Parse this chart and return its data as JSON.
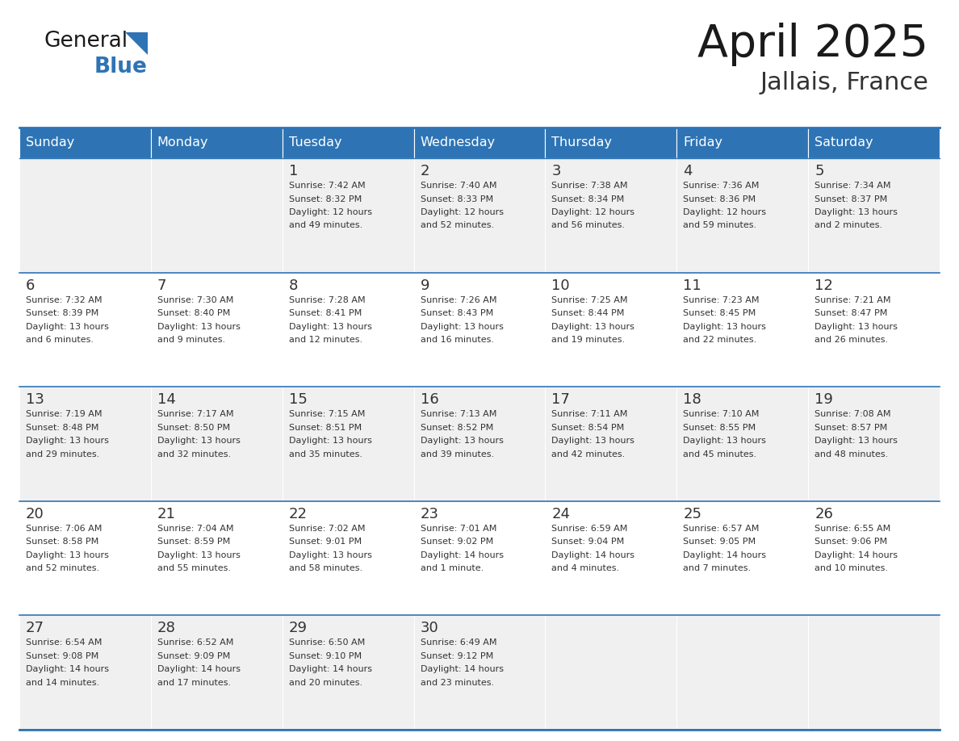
{
  "title": "April 2025",
  "subtitle": "Jallais, France",
  "header_bg_color": "#2E74B5",
  "header_text_color": "#FFFFFF",
  "day_names": [
    "Sunday",
    "Monday",
    "Tuesday",
    "Wednesday",
    "Thursday",
    "Friday",
    "Saturday"
  ],
  "row_colors": [
    "#F0F0F0",
    "#FFFFFF"
  ],
  "border_color": "#2E74B5",
  "text_color": "#333333",
  "logo_general_color": "#1a1a1a",
  "logo_blue_color": "#2E74B5",
  "logo_triangle_color": "#2E74B5",
  "calendar": [
    [
      {
        "day": "",
        "sunrise": "",
        "sunset": "",
        "daylight": ""
      },
      {
        "day": "",
        "sunrise": "",
        "sunset": "",
        "daylight": ""
      },
      {
        "day": "1",
        "sunrise": "Sunrise: 7:42 AM",
        "sunset": "Sunset: 8:32 PM",
        "daylight": "Daylight: 12 hours\nand 49 minutes."
      },
      {
        "day": "2",
        "sunrise": "Sunrise: 7:40 AM",
        "sunset": "Sunset: 8:33 PM",
        "daylight": "Daylight: 12 hours\nand 52 minutes."
      },
      {
        "day": "3",
        "sunrise": "Sunrise: 7:38 AM",
        "sunset": "Sunset: 8:34 PM",
        "daylight": "Daylight: 12 hours\nand 56 minutes."
      },
      {
        "day": "4",
        "sunrise": "Sunrise: 7:36 AM",
        "sunset": "Sunset: 8:36 PM",
        "daylight": "Daylight: 12 hours\nand 59 minutes."
      },
      {
        "day": "5",
        "sunrise": "Sunrise: 7:34 AM",
        "sunset": "Sunset: 8:37 PM",
        "daylight": "Daylight: 13 hours\nand 2 minutes."
      }
    ],
    [
      {
        "day": "6",
        "sunrise": "Sunrise: 7:32 AM",
        "sunset": "Sunset: 8:39 PM",
        "daylight": "Daylight: 13 hours\nand 6 minutes."
      },
      {
        "day": "7",
        "sunrise": "Sunrise: 7:30 AM",
        "sunset": "Sunset: 8:40 PM",
        "daylight": "Daylight: 13 hours\nand 9 minutes."
      },
      {
        "day": "8",
        "sunrise": "Sunrise: 7:28 AM",
        "sunset": "Sunset: 8:41 PM",
        "daylight": "Daylight: 13 hours\nand 12 minutes."
      },
      {
        "day": "9",
        "sunrise": "Sunrise: 7:26 AM",
        "sunset": "Sunset: 8:43 PM",
        "daylight": "Daylight: 13 hours\nand 16 minutes."
      },
      {
        "day": "10",
        "sunrise": "Sunrise: 7:25 AM",
        "sunset": "Sunset: 8:44 PM",
        "daylight": "Daylight: 13 hours\nand 19 minutes."
      },
      {
        "day": "11",
        "sunrise": "Sunrise: 7:23 AM",
        "sunset": "Sunset: 8:45 PM",
        "daylight": "Daylight: 13 hours\nand 22 minutes."
      },
      {
        "day": "12",
        "sunrise": "Sunrise: 7:21 AM",
        "sunset": "Sunset: 8:47 PM",
        "daylight": "Daylight: 13 hours\nand 26 minutes."
      }
    ],
    [
      {
        "day": "13",
        "sunrise": "Sunrise: 7:19 AM",
        "sunset": "Sunset: 8:48 PM",
        "daylight": "Daylight: 13 hours\nand 29 minutes."
      },
      {
        "day": "14",
        "sunrise": "Sunrise: 7:17 AM",
        "sunset": "Sunset: 8:50 PM",
        "daylight": "Daylight: 13 hours\nand 32 minutes."
      },
      {
        "day": "15",
        "sunrise": "Sunrise: 7:15 AM",
        "sunset": "Sunset: 8:51 PM",
        "daylight": "Daylight: 13 hours\nand 35 minutes."
      },
      {
        "day": "16",
        "sunrise": "Sunrise: 7:13 AM",
        "sunset": "Sunset: 8:52 PM",
        "daylight": "Daylight: 13 hours\nand 39 minutes."
      },
      {
        "day": "17",
        "sunrise": "Sunrise: 7:11 AM",
        "sunset": "Sunset: 8:54 PM",
        "daylight": "Daylight: 13 hours\nand 42 minutes."
      },
      {
        "day": "18",
        "sunrise": "Sunrise: 7:10 AM",
        "sunset": "Sunset: 8:55 PM",
        "daylight": "Daylight: 13 hours\nand 45 minutes."
      },
      {
        "day": "19",
        "sunrise": "Sunrise: 7:08 AM",
        "sunset": "Sunset: 8:57 PM",
        "daylight": "Daylight: 13 hours\nand 48 minutes."
      }
    ],
    [
      {
        "day": "20",
        "sunrise": "Sunrise: 7:06 AM",
        "sunset": "Sunset: 8:58 PM",
        "daylight": "Daylight: 13 hours\nand 52 minutes."
      },
      {
        "day": "21",
        "sunrise": "Sunrise: 7:04 AM",
        "sunset": "Sunset: 8:59 PM",
        "daylight": "Daylight: 13 hours\nand 55 minutes."
      },
      {
        "day": "22",
        "sunrise": "Sunrise: 7:02 AM",
        "sunset": "Sunset: 9:01 PM",
        "daylight": "Daylight: 13 hours\nand 58 minutes."
      },
      {
        "day": "23",
        "sunrise": "Sunrise: 7:01 AM",
        "sunset": "Sunset: 9:02 PM",
        "daylight": "Daylight: 14 hours\nand 1 minute."
      },
      {
        "day": "24",
        "sunrise": "Sunrise: 6:59 AM",
        "sunset": "Sunset: 9:04 PM",
        "daylight": "Daylight: 14 hours\nand 4 minutes."
      },
      {
        "day": "25",
        "sunrise": "Sunrise: 6:57 AM",
        "sunset": "Sunset: 9:05 PM",
        "daylight": "Daylight: 14 hours\nand 7 minutes."
      },
      {
        "day": "26",
        "sunrise": "Sunrise: 6:55 AM",
        "sunset": "Sunset: 9:06 PM",
        "daylight": "Daylight: 14 hours\nand 10 minutes."
      }
    ],
    [
      {
        "day": "27",
        "sunrise": "Sunrise: 6:54 AM",
        "sunset": "Sunset: 9:08 PM",
        "daylight": "Daylight: 14 hours\nand 14 minutes."
      },
      {
        "day": "28",
        "sunrise": "Sunrise: 6:52 AM",
        "sunset": "Sunset: 9:09 PM",
        "daylight": "Daylight: 14 hours\nand 17 minutes."
      },
      {
        "day": "29",
        "sunrise": "Sunrise: 6:50 AM",
        "sunset": "Sunset: 9:10 PM",
        "daylight": "Daylight: 14 hours\nand 20 minutes."
      },
      {
        "day": "30",
        "sunrise": "Sunrise: 6:49 AM",
        "sunset": "Sunset: 9:12 PM",
        "daylight": "Daylight: 14 hours\nand 23 minutes."
      },
      {
        "day": "",
        "sunrise": "",
        "sunset": "",
        "daylight": ""
      },
      {
        "day": "",
        "sunrise": "",
        "sunset": "",
        "daylight": ""
      },
      {
        "day": "",
        "sunrise": "",
        "sunset": "",
        "daylight": ""
      }
    ]
  ]
}
